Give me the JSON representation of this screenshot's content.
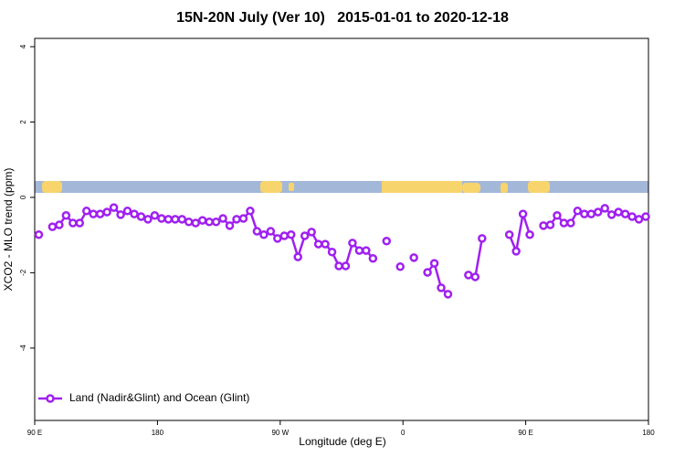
{
  "chart_data": {
    "type": "line",
    "title": "15N-20N July (Ver 10)   2015-01-01 to 2020-12-18",
    "xlabel": "Longitude (deg E)",
    "ylabel": "XCO2 - MLO trend (ppm)",
    "x": [
      93,
      98,
      103,
      108,
      113,
      118,
      123,
      128,
      133,
      138,
      143,
      148,
      153,
      158,
      163,
      168,
      173,
      178,
      183,
      188,
      193,
      198,
      203,
      208,
      213,
      218,
      223,
      228,
      233,
      238,
      243,
      248,
      253,
      258,
      263,
      268,
      273,
      278,
      283,
      288,
      293,
      298,
      303,
      308,
      313,
      318,
      323,
      328,
      333,
      338,
      343,
      348,
      353,
      358,
      363,
      368,
      373,
      378,
      383,
      388,
      393,
      398,
      403,
      408,
      413,
      418,
      423,
      428,
      433,
      438,
      443,
      448,
      453,
      458,
      463,
      468,
      473,
      478,
      483,
      488,
      493,
      498,
      503,
      508,
      513,
      518,
      523,
      528,
      533,
      538
    ],
    "series": [
      {
        "name": "Land (Nadir&Glint) and Ocean (Glint)",
        "color": "#a020f0",
        "values": [
          -0.99,
          null,
          -0.78,
          -0.73,
          -0.48,
          -0.68,
          -0.68,
          -0.36,
          -0.44,
          -0.44,
          -0.39,
          -0.27,
          -0.46,
          -0.36,
          -0.44,
          -0.51,
          -0.58,
          -0.48,
          -0.56,
          -0.58,
          -0.58,
          -0.58,
          -0.65,
          -0.68,
          -0.61,
          -0.65,
          -0.65,
          -0.56,
          -0.75,
          -0.58,
          -0.56,
          -0.36,
          -0.9,
          -0.99,
          -0.9,
          -1.09,
          -1.02,
          -0.99,
          -1.58,
          -1.02,
          -0.92,
          -1.24,
          -1.24,
          -1.45,
          -1.82,
          -1.82,
          -1.21,
          -1.41,
          -1.41,
          -1.62,
          null,
          -1.16,
          null,
          -1.84,
          null,
          -1.6,
          null,
          -1.99,
          -1.75,
          -2.4,
          -2.57,
          null,
          null,
          -2.06,
          -2.11,
          -1.09,
          null,
          null,
          null,
          -0.99,
          -1.43,
          -0.44,
          -0.99,
          null,
          -0.75,
          -0.73,
          -0.48,
          -0.68,
          -0.68,
          -0.36,
          -0.44,
          -0.44,
          -0.39,
          -0.29,
          -0.46,
          -0.39,
          -0.44,
          -0.51,
          -0.58,
          -0.51
        ]
      }
    ],
    "xlim": [
      90,
      540
    ],
    "xticks": [
      {
        "value": 90,
        "label": "90 E"
      },
      180,
      {
        "value": 270,
        "label": "90 W"
      },
      {
        "value": 360,
        "label": "0"
      },
      {
        "value": 450,
        "label": "90 E"
      },
      {
        "value": 540,
        "label": "180"
      }
    ],
    "ylim": [
      -5.92,
      4.22
    ],
    "yticks": [
      -4,
      -2,
      0,
      2,
      4
    ],
    "legend": "bottomleft"
  }
}
